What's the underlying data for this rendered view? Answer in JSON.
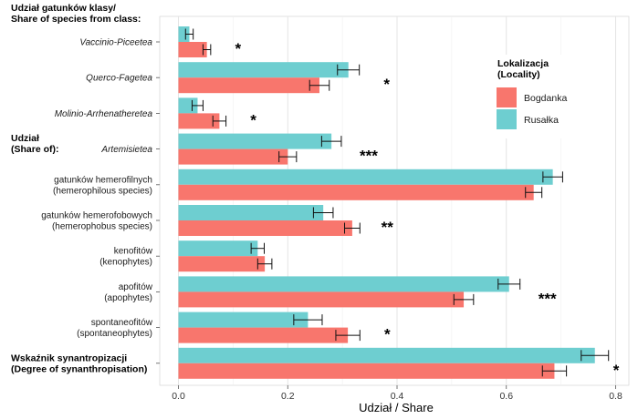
{
  "chart_data": {
    "type": "bar",
    "orientation": "horizontal",
    "xlabel": "Udział / Share",
    "xlim": [
      0,
      0.8
    ],
    "xticks": [
      0.0,
      0.2,
      0.4,
      0.6,
      0.8
    ],
    "xtick_labels": [
      "0.0",
      "0.2",
      "0.4",
      "0.6",
      "0.8"
    ],
    "grid": true,
    "legend": {
      "title": [
        "Lokalizacja",
        "(Locality)"
      ],
      "position": "right",
      "entries": [
        {
          "name": "Bogdanka",
          "color": "#F8766D"
        },
        {
          "name": "Rusałka",
          "color": "#6ECED0"
        }
      ]
    },
    "section_labels": [
      {
        "lines": [
          "Udział gatunków klasy/",
          "Share of species from class:"
        ],
        "anchor_row": 0
      },
      {
        "lines": [
          "Udział",
          "(Share of):"
        ],
        "anchor_row": 3
      }
    ],
    "categories": [
      {
        "lines": [
          "Vaccinio-Piceetea"
        ],
        "style": "italic",
        "Rusalka": 0.02,
        "Rusalka_err": 0.007,
        "Bogdanka": 0.052,
        "Bogdanka_err": 0.007,
        "sig": "*"
      },
      {
        "lines": [
          "Querco-Fagetea"
        ],
        "style": "italic",
        "Rusalka": 0.311,
        "Rusalka_err": 0.02,
        "Bogdanka": 0.258,
        "Bogdanka_err": 0.018,
        "sig": "*"
      },
      {
        "lines": [
          "Molinio-Arrhenatheretea"
        ],
        "style": "italic",
        "Rusalka": 0.035,
        "Rusalka_err": 0.01,
        "Bogdanka": 0.075,
        "Bogdanka_err": 0.012,
        "sig": "*"
      },
      {
        "lines": [
          "Artemisietea"
        ],
        "style": "italic",
        "Rusalka": 0.28,
        "Rusalka_err": 0.018,
        "Bogdanka": 0.2,
        "Bogdanka_err": 0.016,
        "sig": "***"
      },
      {
        "lines": [
          "gatunków hemerofilnych",
          "(hemerophilous species)"
        ],
        "style": "normal",
        "Rusalka": 0.685,
        "Rusalka_err": 0.018,
        "Bogdanka": 0.65,
        "Bogdanka_err": 0.015,
        "sig": ""
      },
      {
        "lines": [
          "gatunków hemerofobowych",
          "(hemerophobus species)"
        ],
        "style": "normal",
        "Rusalka": 0.265,
        "Rusalka_err": 0.018,
        "Bogdanka": 0.318,
        "Bogdanka_err": 0.014,
        "sig": "**"
      },
      {
        "lines": [
          "kenofitów",
          "(kenophytes)"
        ],
        "style": "normal",
        "Rusalka": 0.145,
        "Rusalka_err": 0.012,
        "Bogdanka": 0.158,
        "Bogdanka_err": 0.013,
        "sig": ""
      },
      {
        "lines": [
          "apofitów",
          "(apophytes)"
        ],
        "style": "normal",
        "Rusalka": 0.605,
        "Rusalka_err": 0.02,
        "Bogdanka": 0.522,
        "Bogdanka_err": 0.018,
        "sig": "***"
      },
      {
        "lines": [
          "spontaneofitów",
          "(spontaneophytes)"
        ],
        "style": "normal",
        "Rusalka": 0.237,
        "Rusalka_err": 0.026,
        "Bogdanka": 0.31,
        "Bogdanka_err": 0.022,
        "sig": "*"
      },
      {
        "lines": [
          "Wskaźnik synantropizacji",
          "(Degree of synanthropisation)"
        ],
        "style": "bold",
        "Rusalka": 0.762,
        "Rusalka_err": 0.025,
        "Bogdanka": 0.688,
        "Bogdanka_err": 0.022,
        "sig": "*"
      }
    ]
  }
}
